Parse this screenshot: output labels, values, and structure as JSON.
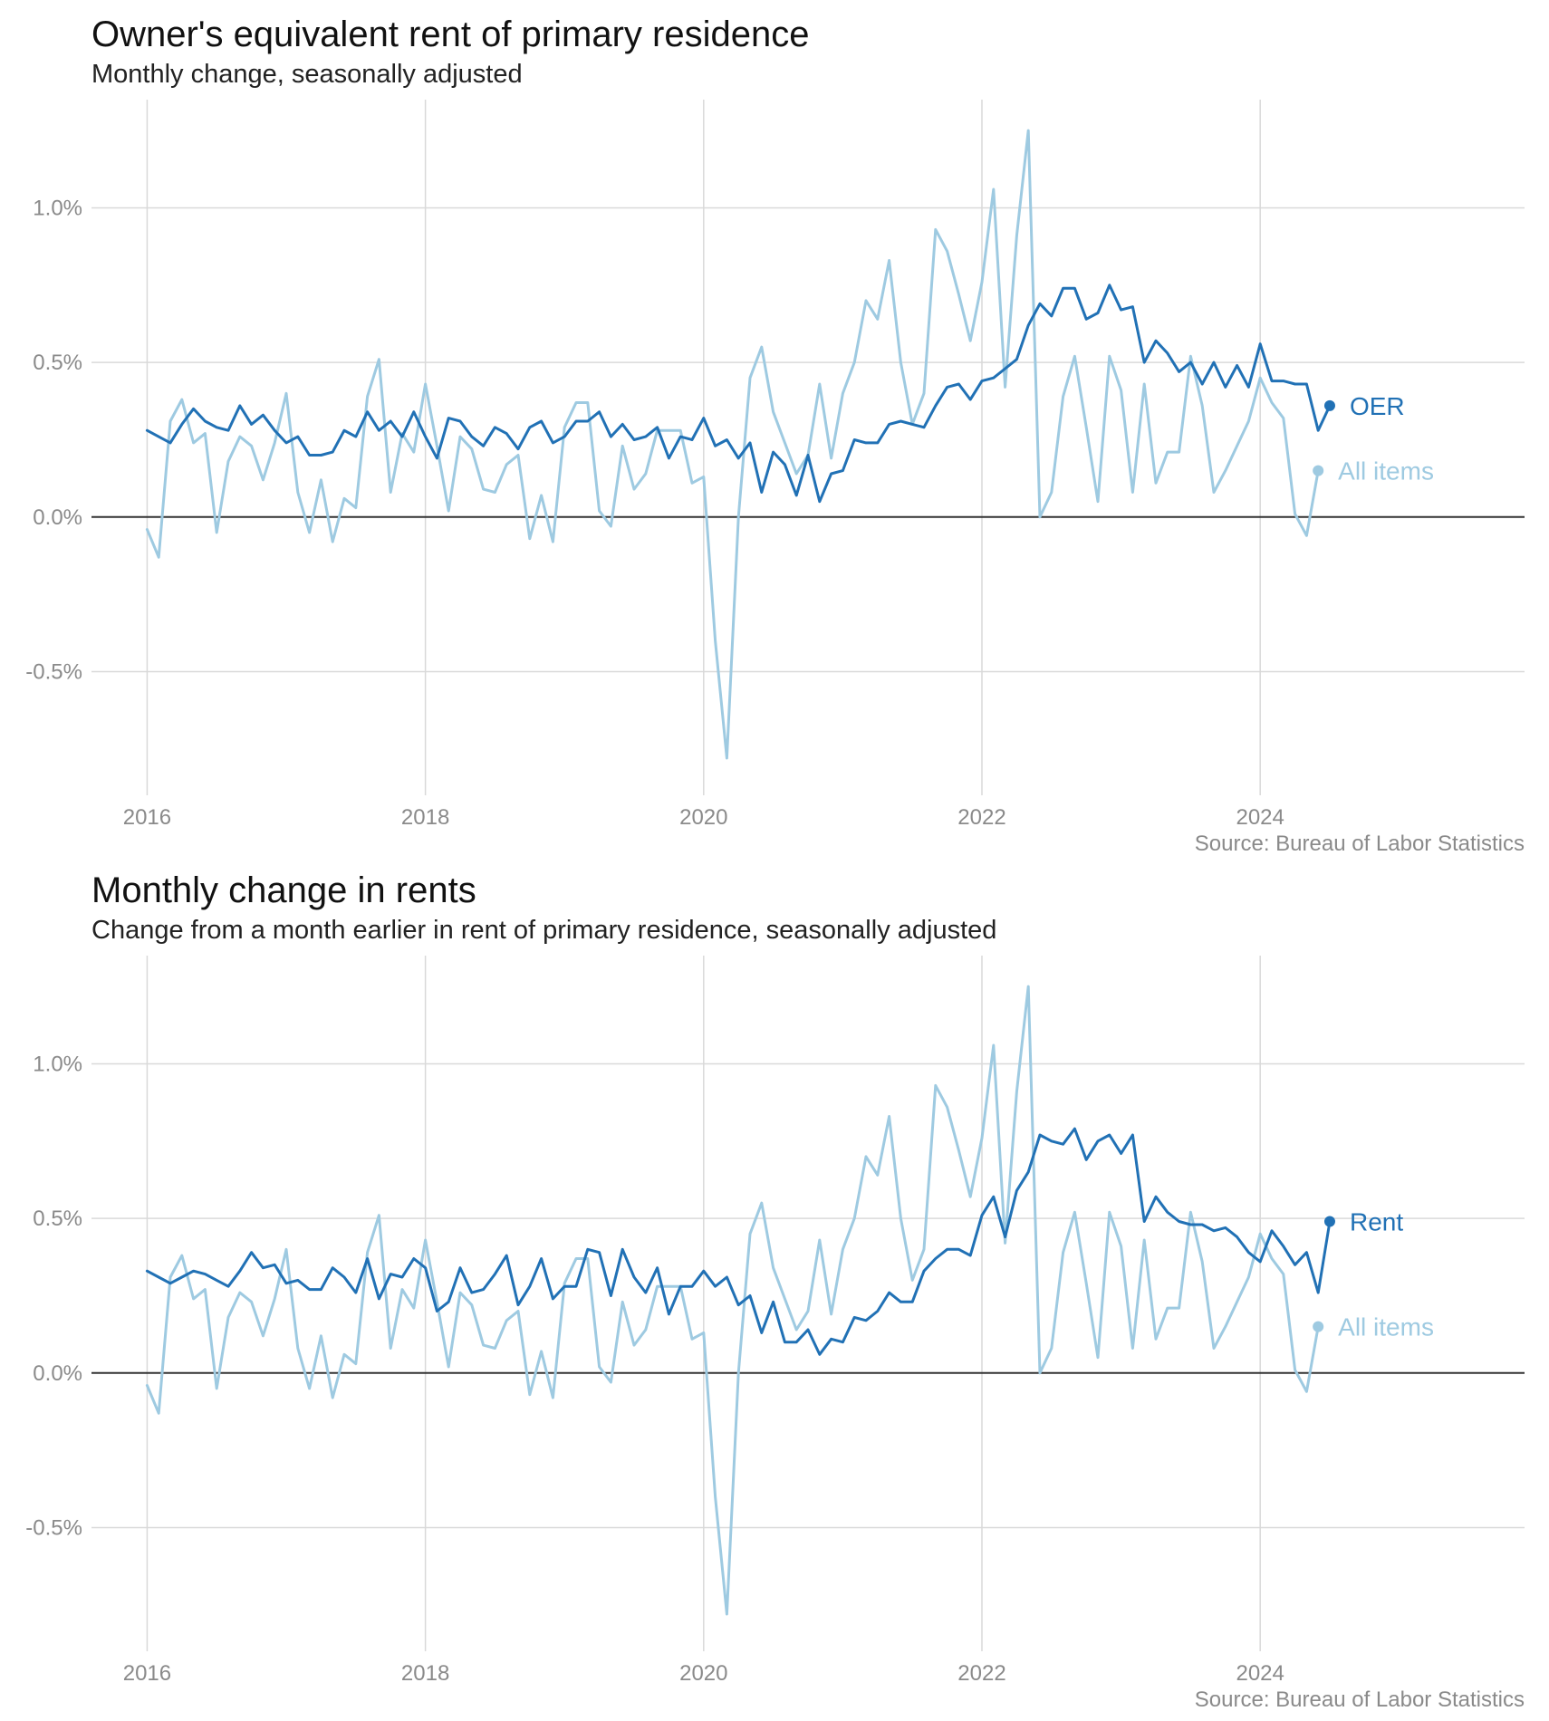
{
  "chart_data": [
    {
      "type": "line",
      "title": "Owner's equivalent rent of primary residence",
      "subtitle": "Monthly change, seasonally adjusted",
      "source": "Source: Bureau of Labor Statistics",
      "xlabel": "",
      "ylabel": "",
      "x_start": "2016-01",
      "x_frequency": "monthly",
      "xlim": [
        2015.6,
        2025.9
      ],
      "ylim": [
        -0.9,
        1.35
      ],
      "x_ticks": [
        2016,
        2018,
        2020,
        2022,
        2024
      ],
      "x_tick_labels": [
        "2016",
        "2018",
        "2020",
        "2022",
        "2024"
      ],
      "y_ticks": [
        -0.5,
        0.0,
        0.5,
        1.0
      ],
      "y_tick_labels": [
        "-0.5%",
        "0.0%",
        "0.5%",
        "1.0%"
      ],
      "grid": true,
      "zero_line": true,
      "legend": "direct labels at line ends",
      "series": [
        {
          "name": "All items",
          "color": "#9ecae1",
          "end_marker": true,
          "values": [
            -0.04,
            -0.13,
            0.31,
            0.38,
            0.24,
            0.27,
            -0.05,
            0.18,
            0.26,
            0.23,
            0.12,
            0.24,
            0.4,
            0.08,
            -0.05,
            0.12,
            -0.08,
            0.06,
            0.03,
            0.39,
            0.51,
            0.08,
            0.27,
            0.21,
            0.43,
            0.23,
            0.02,
            0.26,
            0.22,
            0.09,
            0.08,
            0.17,
            0.2,
            -0.07,
            0.07,
            -0.08,
            0.29,
            0.37,
            0.37,
            0.02,
            -0.03,
            0.23,
            0.09,
            0.14,
            0.28,
            0.28,
            0.28,
            0.11,
            0.13,
            -0.4,
            -0.78,
            0.0,
            0.45,
            0.55,
            0.34,
            0.24,
            0.14,
            0.2,
            0.43,
            0.19,
            0.4,
            0.5,
            0.7,
            0.64,
            0.83,
            0.5,
            0.3,
            0.4,
            0.93,
            0.86,
            0.72,
            0.57,
            0.76,
            1.06,
            0.42,
            0.91,
            1.25,
            0.0,
            0.08,
            0.39,
            0.52,
            0.29,
            0.05,
            0.52,
            0.41,
            0.08,
            0.43,
            0.11,
            0.21,
            0.21,
            0.52,
            0.36,
            0.08,
            0.15,
            0.23,
            0.31,
            0.45,
            0.37,
            0.32,
            0.01,
            -0.06,
            0.15
          ]
        },
        {
          "name": "OER",
          "color": "#2171b5",
          "end_marker": true,
          "values": [
            0.28,
            0.26,
            0.24,
            0.3,
            0.35,
            0.31,
            0.29,
            0.28,
            0.36,
            0.3,
            0.33,
            0.28,
            0.24,
            0.26,
            0.2,
            0.2,
            0.21,
            0.28,
            0.26,
            0.34,
            0.28,
            0.31,
            0.26,
            0.34,
            0.26,
            0.19,
            0.32,
            0.31,
            0.26,
            0.23,
            0.29,
            0.27,
            0.22,
            0.29,
            0.31,
            0.24,
            0.26,
            0.31,
            0.31,
            0.34,
            0.26,
            0.3,
            0.25,
            0.26,
            0.29,
            0.19,
            0.26,
            0.25,
            0.32,
            0.23,
            0.25,
            0.19,
            0.24,
            0.08,
            0.21,
            0.17,
            0.07,
            0.2,
            0.05,
            0.14,
            0.15,
            0.25,
            0.24,
            0.24,
            0.3,
            0.31,
            0.3,
            0.29,
            0.36,
            0.42,
            0.43,
            0.38,
            0.44,
            0.45,
            0.48,
            0.51,
            0.62,
            0.69,
            0.65,
            0.74,
            0.74,
            0.64,
            0.66,
            0.75,
            0.67,
            0.68,
            0.5,
            0.57,
            0.53,
            0.47,
            0.5,
            0.43,
            0.5,
            0.42,
            0.49,
            0.42,
            0.56,
            0.44,
            0.44,
            0.43,
            0.43,
            0.28,
            0.36
          ]
        }
      ]
    },
    {
      "type": "line",
      "title": "Monthly change in rents",
      "subtitle": "Change from a month earlier in rent of primary residence, seasonally adjusted",
      "source": "Source: Bureau of Labor Statistics",
      "xlabel": "",
      "ylabel": "",
      "x_start": "2016-01",
      "x_frequency": "monthly",
      "xlim": [
        2015.6,
        2025.9
      ],
      "ylim": [
        -0.9,
        1.35
      ],
      "x_ticks": [
        2016,
        2018,
        2020,
        2022,
        2024
      ],
      "x_tick_labels": [
        "2016",
        "2018",
        "2020",
        "2022",
        "2024"
      ],
      "y_ticks": [
        -0.5,
        0.0,
        0.5,
        1.0
      ],
      "y_tick_labels": [
        "-0.5%",
        "0.0%",
        "0.5%",
        "1.0%"
      ],
      "grid": true,
      "zero_line": true,
      "legend": "direct labels at line ends",
      "series": [
        {
          "name": "All items",
          "color": "#9ecae1",
          "end_marker": true,
          "values": [
            -0.04,
            -0.13,
            0.31,
            0.38,
            0.24,
            0.27,
            -0.05,
            0.18,
            0.26,
            0.23,
            0.12,
            0.24,
            0.4,
            0.08,
            -0.05,
            0.12,
            -0.08,
            0.06,
            0.03,
            0.39,
            0.51,
            0.08,
            0.27,
            0.21,
            0.43,
            0.23,
            0.02,
            0.26,
            0.22,
            0.09,
            0.08,
            0.17,
            0.2,
            -0.07,
            0.07,
            -0.08,
            0.29,
            0.37,
            0.37,
            0.02,
            -0.03,
            0.23,
            0.09,
            0.14,
            0.28,
            0.28,
            0.28,
            0.11,
            0.13,
            -0.4,
            -0.78,
            0.0,
            0.45,
            0.55,
            0.34,
            0.24,
            0.14,
            0.2,
            0.43,
            0.19,
            0.4,
            0.5,
            0.7,
            0.64,
            0.83,
            0.5,
            0.3,
            0.4,
            0.93,
            0.86,
            0.72,
            0.57,
            0.76,
            1.06,
            0.42,
            0.91,
            1.25,
            0.0,
            0.08,
            0.39,
            0.52,
            0.29,
            0.05,
            0.52,
            0.41,
            0.08,
            0.43,
            0.11,
            0.21,
            0.21,
            0.52,
            0.36,
            0.08,
            0.15,
            0.23,
            0.31,
            0.45,
            0.37,
            0.32,
            0.01,
            -0.06,
            0.15
          ]
        },
        {
          "name": "Rent",
          "color": "#2171b5",
          "end_marker": true,
          "values": [
            0.33,
            0.31,
            0.29,
            0.31,
            0.33,
            0.32,
            0.3,
            0.28,
            0.33,
            0.39,
            0.34,
            0.35,
            0.29,
            0.3,
            0.27,
            0.27,
            0.34,
            0.31,
            0.26,
            0.37,
            0.24,
            0.32,
            0.31,
            0.37,
            0.34,
            0.2,
            0.23,
            0.34,
            0.26,
            0.27,
            0.32,
            0.38,
            0.22,
            0.28,
            0.37,
            0.24,
            0.28,
            0.28,
            0.4,
            0.39,
            0.25,
            0.4,
            0.31,
            0.26,
            0.34,
            0.19,
            0.28,
            0.28,
            0.33,
            0.28,
            0.31,
            0.22,
            0.25,
            0.13,
            0.23,
            0.1,
            0.1,
            0.14,
            0.06,
            0.11,
            0.1,
            0.18,
            0.17,
            0.2,
            0.26,
            0.23,
            0.23,
            0.33,
            0.37,
            0.4,
            0.4,
            0.38,
            0.51,
            0.57,
            0.44,
            0.59,
            0.65,
            0.77,
            0.75,
            0.74,
            0.79,
            0.69,
            0.75,
            0.77,
            0.71,
            0.77,
            0.49,
            0.57,
            0.52,
            0.49,
            0.48,
            0.48,
            0.46,
            0.47,
            0.44,
            0.39,
            0.36,
            0.46,
            0.41,
            0.35,
            0.39,
            0.26,
            0.49
          ]
        }
      ]
    }
  ]
}
